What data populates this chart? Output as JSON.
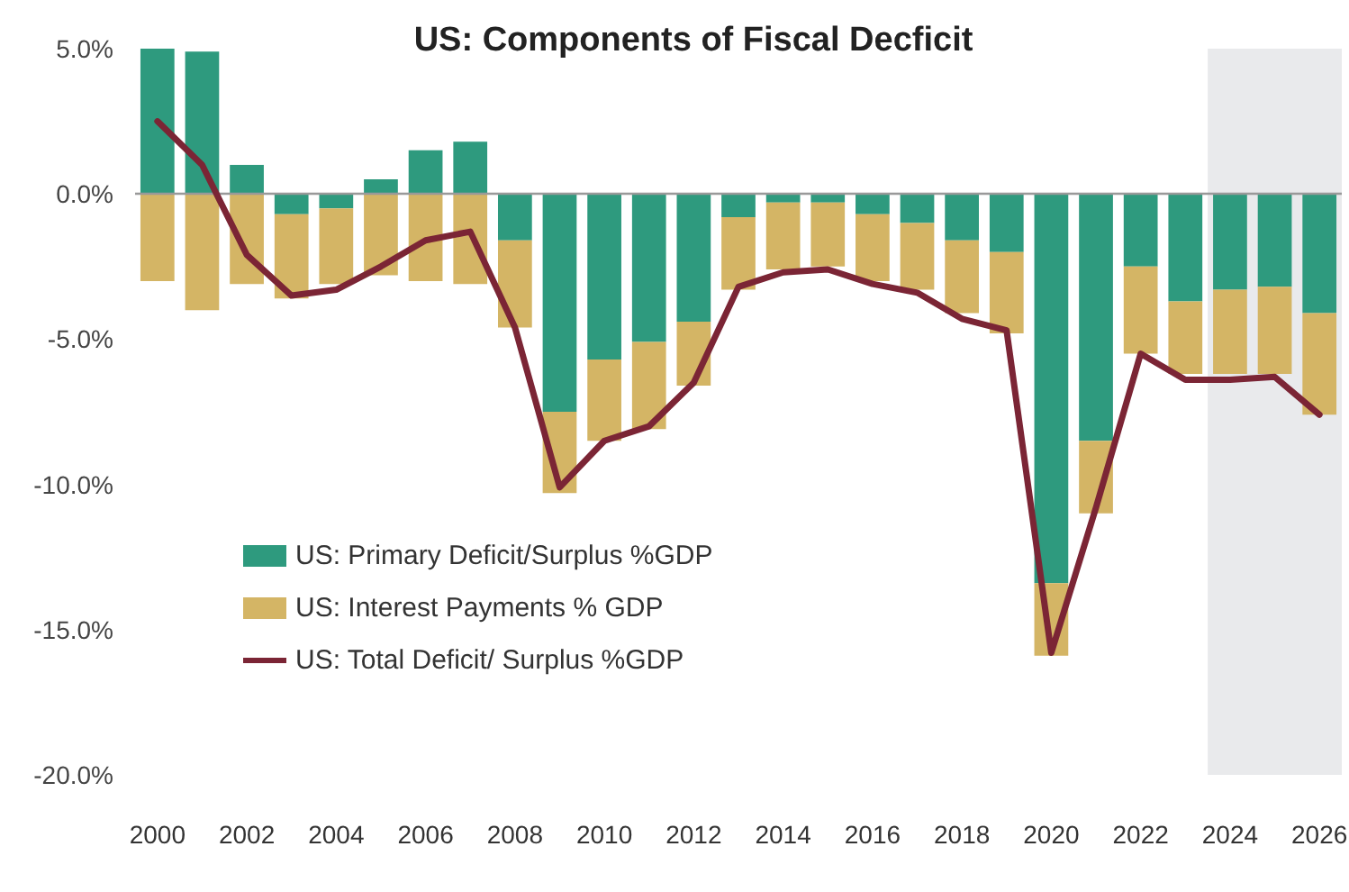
{
  "chart_data": {
    "type": "bar",
    "stacked": true,
    "title": "US: Components of Fiscal Decficit",
    "categories": [
      "2000",
      null,
      "2002",
      null,
      "2004",
      null,
      "2006",
      null,
      "2008",
      null,
      "2010",
      null,
      "2012",
      null,
      "2014",
      null,
      "2016",
      null,
      "2018",
      null,
      "2020",
      null,
      "2022",
      null,
      "2024",
      null,
      "2026"
    ],
    "series": [
      {
        "name": "US: Primary Deficit/Surplus %GDP",
        "color": "#2e9a7e",
        "values": [
          5.0,
          4.9,
          1.0,
          -0.7,
          -0.5,
          0.5,
          1.5,
          1.8,
          -1.6,
          -7.5,
          -5.7,
          -5.1,
          -4.4,
          -0.8,
          -0.3,
          -0.3,
          -0.7,
          -1.0,
          -1.6,
          -2.0,
          -13.4,
          -8.5,
          -2.5,
          -3.7,
          -3.3,
          -3.2,
          -4.1
        ]
      },
      {
        "name": "US: Interest Payments % GDP",
        "color": "#d4b565",
        "values": [
          -3.0,
          -4.0,
          -3.1,
          -2.9,
          -2.6,
          -2.8,
          -3.0,
          -3.1,
          -3.0,
          -2.8,
          -2.8,
          -3.0,
          -2.2,
          -2.5,
          -2.3,
          -2.2,
          -2.3,
          -2.3,
          -2.5,
          -2.8,
          -2.5,
          -2.5,
          -3.0,
          -2.5,
          -2.9,
          -3.0,
          -3.5
        ]
      },
      {
        "name": "US: Total Deficit/ Surplus %GDP",
        "type": "line",
        "color": "#7b2535",
        "values": [
          2.5,
          1.0,
          -2.1,
          -3.5,
          -3.3,
          -2.5,
          -1.6,
          -1.3,
          -4.6,
          -10.1,
          -8.5,
          -8.0,
          -6.5,
          -3.2,
          -2.7,
          -2.6,
          -3.1,
          -3.4,
          -4.3,
          -4.7,
          -15.8,
          -10.8,
          -5.5,
          -6.4,
          -6.4,
          -6.3,
          -7.6
        ]
      }
    ],
    "ylim": [
      -20,
      5
    ],
    "yticks": [
      {
        "value": -20,
        "label": "-20.0%"
      },
      {
        "value": -15,
        "label": "-15.0%"
      },
      {
        "value": -10,
        "label": "-10.0%"
      },
      {
        "value": -5,
        "label": "-5.0%"
      },
      {
        "value": 0,
        "label": "0.0%"
      },
      {
        "value": 5,
        "label": "5.0%"
      }
    ],
    "ref_lines": [
      {
        "axis": "y",
        "value": 0,
        "color": "#999999"
      }
    ],
    "bands": [
      {
        "axis": "x",
        "from": "2024",
        "to": "2026",
        "color": "#e9eaec"
      }
    ],
    "grid": false,
    "legend": "bottom left",
    "marker": "none",
    "line_style": "solid"
  }
}
